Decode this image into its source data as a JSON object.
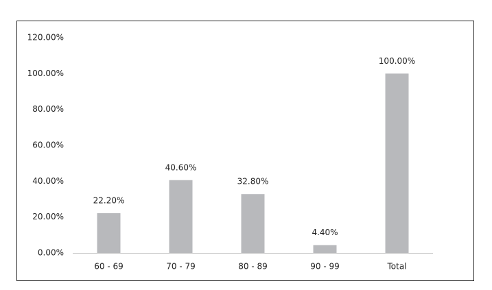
{
  "chart_data": {
    "type": "bar",
    "categories": [
      "60 - 69",
      "70 - 79",
      "80 - 89",
      "90 - 99",
      "Total"
    ],
    "values": [
      22.2,
      40.6,
      32.8,
      4.4,
      100
    ],
    "value_labels": [
      "22.20%",
      "40.60%",
      "32.80%",
      "4.40%",
      "100.00%"
    ],
    "color": "#b8b9bc",
    "ylim": [
      0,
      120
    ],
    "yticks": [
      {
        "value": 0,
        "label": "0.00%"
      },
      {
        "value": 20,
        "label": "20.00%"
      },
      {
        "value": 40,
        "label": "40.00%"
      },
      {
        "value": 60,
        "label": "60.00%"
      },
      {
        "value": 80,
        "label": "80.00%"
      },
      {
        "value": 100,
        "label": "100.00%"
      },
      {
        "value": 120,
        "label": "120.00%"
      }
    ],
    "grid": false
  }
}
